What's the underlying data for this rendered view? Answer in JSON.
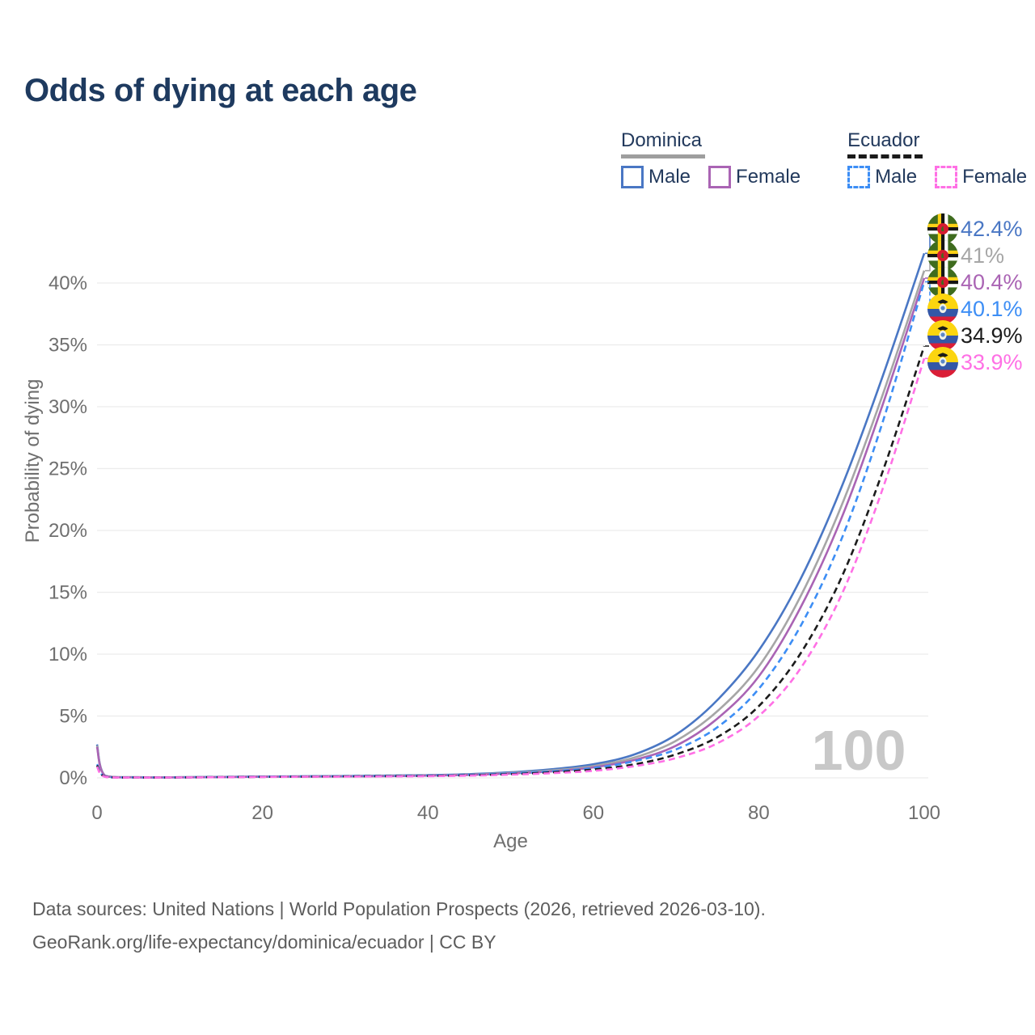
{
  "header": {
    "title": "Odds of dying at each age"
  },
  "legend": {
    "groups": [
      {
        "country": "Dominica",
        "style": "solid",
        "color": "#9e9e9e",
        "items": [
          {
            "label": "Male",
            "color": "#4a77c4",
            "dashed": false
          },
          {
            "label": "Female",
            "color": "#aa64b4",
            "dashed": false
          }
        ]
      },
      {
        "country": "Ecuador",
        "style": "dashed",
        "color": "#1a1a1a",
        "items": [
          {
            "label": "Male",
            "color": "#3d8ef5",
            "dashed": true
          },
          {
            "label": "Female",
            "color": "#ff70e5",
            "dashed": true
          }
        ]
      }
    ]
  },
  "footer": {
    "line1": "Data sources: United Nations | World Population Prospects (2026, retrieved 2026-03-10).",
    "line2": "GeoRank.org/life-expectancy/dominica/ecuador | CC BY"
  },
  "chart_data": {
    "type": "line",
    "title": "Odds of dying at each age",
    "xlabel": "Age",
    "ylabel": "Probability of dying",
    "xlim": [
      0,
      100
    ],
    "ylim": [
      0,
      44
    ],
    "grid": true,
    "legend_position": "top-right",
    "watermark": "100",
    "x_ticks": [
      0,
      20,
      40,
      60,
      80,
      100
    ],
    "y_tick_values": [
      0,
      5,
      10,
      15,
      20,
      25,
      30,
      35,
      40
    ],
    "y_ticks": [
      "0%",
      "5%",
      "10%",
      "15%",
      "20%",
      "25%",
      "30%",
      "35%",
      "40%"
    ],
    "x": [
      0,
      1,
      5,
      10,
      15,
      20,
      25,
      30,
      35,
      40,
      45,
      50,
      55,
      60,
      65,
      70,
      75,
      80,
      85,
      90,
      95,
      100
    ],
    "series": [
      {
        "name": "Dominica Male",
        "country": "Dominica",
        "sex": "Male",
        "flag": "dominica",
        "color": "#4a77c4",
        "dashed": false,
        "end_label": "42.4%",
        "values": [
          2.7,
          0.17,
          0.05,
          0.05,
          0.08,
          0.11,
          0.13,
          0.15,
          0.18,
          0.22,
          0.3,
          0.45,
          0.7,
          1.1,
          1.9,
          3.5,
          6.3,
          10.3,
          16.0,
          23.5,
          32.5,
          42.4
        ]
      },
      {
        "name": "Dominica Both sexes",
        "country": "Dominica",
        "sex": "Both",
        "flag": "dominica",
        "color": "#a6a6a6",
        "dashed": false,
        "end_label": "41%",
        "values": [
          2.6,
          0.16,
          0.05,
          0.05,
          0.07,
          0.1,
          0.12,
          0.14,
          0.16,
          0.2,
          0.27,
          0.4,
          0.6,
          0.95,
          1.65,
          3.0,
          5.4,
          9.0,
          14.6,
          22.0,
          31.0,
          41.0
        ]
      },
      {
        "name": "Dominica Female",
        "country": "Dominica",
        "sex": "Female",
        "flag": "dominica",
        "color": "#aa64b4",
        "dashed": false,
        "end_label": "40.4%",
        "values": [
          2.5,
          0.15,
          0.04,
          0.04,
          0.06,
          0.09,
          0.1,
          0.12,
          0.14,
          0.18,
          0.24,
          0.35,
          0.52,
          0.85,
          1.45,
          2.6,
          4.8,
          8.2,
          13.7,
          21.0,
          30.2,
          40.4
        ]
      },
      {
        "name": "Ecuador Male",
        "country": "Ecuador",
        "sex": "Male",
        "flag": "ecuador",
        "color": "#3d8ef5",
        "dashed": true,
        "end_label": "40.1%",
        "values": [
          1.1,
          0.1,
          0.04,
          0.04,
          0.07,
          0.1,
          0.12,
          0.14,
          0.16,
          0.19,
          0.25,
          0.36,
          0.53,
          0.8,
          1.35,
          2.3,
          4.1,
          7.2,
          12.2,
          19.3,
          28.8,
          40.1
        ]
      },
      {
        "name": "Ecuador Both sexes",
        "country": "Ecuador",
        "sex": "Both",
        "flag": "ecuador",
        "color": "#1c1c1c",
        "dashed": true,
        "end_label": "34.9%",
        "values": [
          1.0,
          0.09,
          0.03,
          0.03,
          0.06,
          0.08,
          0.1,
          0.12,
          0.14,
          0.16,
          0.21,
          0.3,
          0.45,
          0.68,
          1.1,
          1.9,
          3.3,
          5.8,
          10.0,
          16.2,
          24.8,
          34.9
        ]
      },
      {
        "name": "Ecuador Female",
        "country": "Ecuador",
        "sex": "Female",
        "flag": "ecuador",
        "color": "#ff70e5",
        "dashed": true,
        "end_label": "33.9%",
        "values": [
          0.9,
          0.08,
          0.03,
          0.03,
          0.05,
          0.07,
          0.09,
          0.1,
          0.12,
          0.14,
          0.18,
          0.26,
          0.38,
          0.57,
          0.95,
          1.6,
          2.8,
          5.0,
          8.8,
          14.8,
          23.4,
          33.9
        ]
      }
    ]
  }
}
